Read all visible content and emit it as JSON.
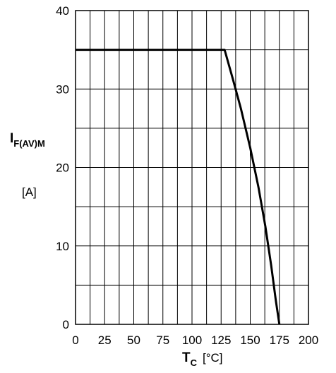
{
  "chart_data": {
    "type": "line",
    "title": "",
    "xlabel": {
      "symbol": "T",
      "subscript": "C",
      "unit": "[°C]"
    },
    "ylabel": {
      "symbol": "I",
      "subscript": "F(AV)M",
      "unit": "[A]"
    },
    "xlim": [
      0,
      200
    ],
    "ylim": [
      0,
      40
    ],
    "x_ticks": [
      0,
      25,
      50,
      75,
      100,
      125,
      150,
      175,
      200
    ],
    "y_ticks": [
      0,
      10,
      20,
      30,
      40
    ],
    "grid": true,
    "series": [
      {
        "x": [
          0,
          128,
          135,
          142,
          150,
          157,
          163,
          168,
          172,
          175
        ],
        "y": [
          35,
          35,
          31.3,
          27.5,
          22.5,
          17.5,
          12.5,
          7.5,
          3,
          0
        ]
      }
    ]
  }
}
